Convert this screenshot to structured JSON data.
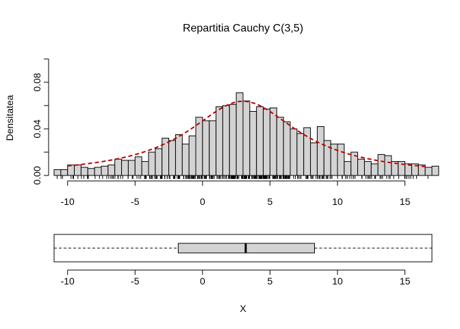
{
  "chart_data": [
    {
      "type": "bar",
      "subtype": "histogram",
      "title": "Repartitia Cauchy C(3,5)",
      "ylabel": "Densitatea",
      "xlim": [
        -11,
        17
      ],
      "ylim": [
        0,
        0.1
      ],
      "bin_width": 0.5,
      "bin_start": -11,
      "densities": [
        0.005,
        0.005,
        0.009,
        0.009,
        0.007,
        0.006,
        0.007,
        0.008,
        0.009,
        0.014,
        0.013,
        0.013,
        0.016,
        0.012,
        0.02,
        0.023,
        0.032,
        0.03,
        0.035,
        0.027,
        0.034,
        0.05,
        0.047,
        0.047,
        0.059,
        0.06,
        0.061,
        0.071,
        0.064,
        0.055,
        0.059,
        0.057,
        0.058,
        0.05,
        0.046,
        0.04,
        0.036,
        0.041,
        0.028,
        0.042,
        0.03,
        0.027,
        0.027,
        0.012,
        0.02,
        0.014,
        0.012,
        0.01,
        0.018,
        0.017,
        0.012,
        0.012,
        0.01,
        0.01,
        0.009,
        0.007,
        0.008
      ],
      "density_curve": {
        "style": "dashed",
        "color": "#c00000",
        "label": "",
        "location": 3,
        "scale": 5
      },
      "x_ticks": [
        "-10",
        "-5",
        "0",
        "5",
        "10",
        "15"
      ],
      "y_ticks": [
        "0.00",
        "0.04",
        "0.08"
      ],
      "grid": false,
      "rug": true,
      "colors": {
        "bars": "#d3d3d3",
        "curve": "#c00000"
      }
    },
    {
      "type": "boxplot",
      "orientation": "horizontal",
      "xlabel": "X",
      "xlim": [
        -11,
        17
      ],
      "whisker_low": -11,
      "q1": -1.8,
      "median": 3.2,
      "q3": 8.3,
      "whisker_high": 17,
      "x_ticks": [
        "-10",
        "-5",
        "0",
        "5",
        "10",
        "15"
      ],
      "colors": {
        "box": "#d3d3d3"
      }
    }
  ]
}
